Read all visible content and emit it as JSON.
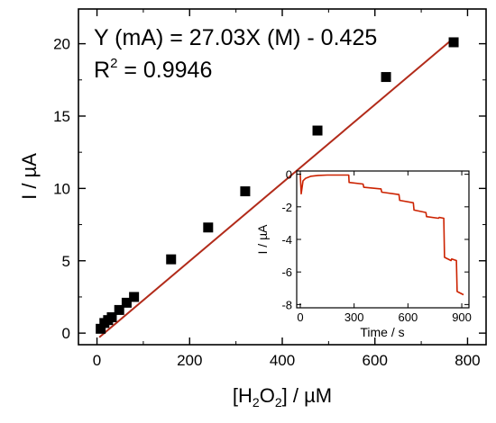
{
  "chart_data": [
    {
      "type": "scatter",
      "xlabel": "[H2O2] / µM",
      "ylabel": "I / µA",
      "xlim": [
        -40,
        840
      ],
      "ylim": [
        -0.8,
        22.4
      ],
      "xticks": [
        0,
        200,
        400,
        600,
        800
      ],
      "yticks": [
        0,
        5,
        10,
        15,
        20
      ],
      "grid": false,
      "annotation": {
        "equation": "Y (mA) = 27.03X (M) - 0.425",
        "r2_label": "R",
        "r2_sup": "2",
        "r2_value": " = 0.9946"
      },
      "series": [
        {
          "type": "scatter",
          "marker": "square",
          "color": "#000000",
          "x": [
            8,
            16,
            24,
            32,
            48,
            64,
            80,
            160,
            240,
            320,
            476,
            624,
            770
          ],
          "y": [
            0.3,
            0.7,
            0.9,
            1.1,
            1.6,
            2.1,
            2.5,
            5.1,
            7.3,
            9.8,
            14.0,
            17.7,
            20.1
          ]
        },
        {
          "type": "line",
          "role": "fit",
          "color": "#b22b1a",
          "slope": 0.02703,
          "intercept": -0.425,
          "x_range": [
            5,
            770
          ]
        }
      ]
    },
    {
      "type": "line",
      "inset": true,
      "xlabel": "Time / s",
      "ylabel": "I / µA",
      "xlim": [
        -20,
        940
      ],
      "ylim": [
        -8.2,
        0.2
      ],
      "xticks": [
        0,
        300,
        600,
        900
      ],
      "yticks": [
        0,
        -2,
        -4,
        -6,
        -8
      ],
      "color": "#cc2200",
      "series": [
        {
          "x": [
            0,
            5,
            15,
            30,
            60,
            100,
            150,
            200,
            250,
            270,
            272,
            350,
            354,
            450,
            454,
            550,
            554,
            630,
            634,
            700,
            704,
            770,
            774,
            800,
            804,
            840,
            844,
            870,
            874,
            910
          ],
          "y": [
            -0.05,
            -1.2,
            -0.4,
            -0.25,
            -0.12,
            -0.07,
            -0.05,
            -0.05,
            -0.05,
            -0.05,
            -0.5,
            -0.6,
            -0.8,
            -0.9,
            -1.1,
            -1.25,
            -1.6,
            -1.75,
            -2.2,
            -2.35,
            -2.6,
            -2.7,
            -2.65,
            -2.7,
            -5.1,
            -5.3,
            -5.2,
            -5.3,
            -7.2,
            -7.4
          ]
        }
      ]
    }
  ]
}
